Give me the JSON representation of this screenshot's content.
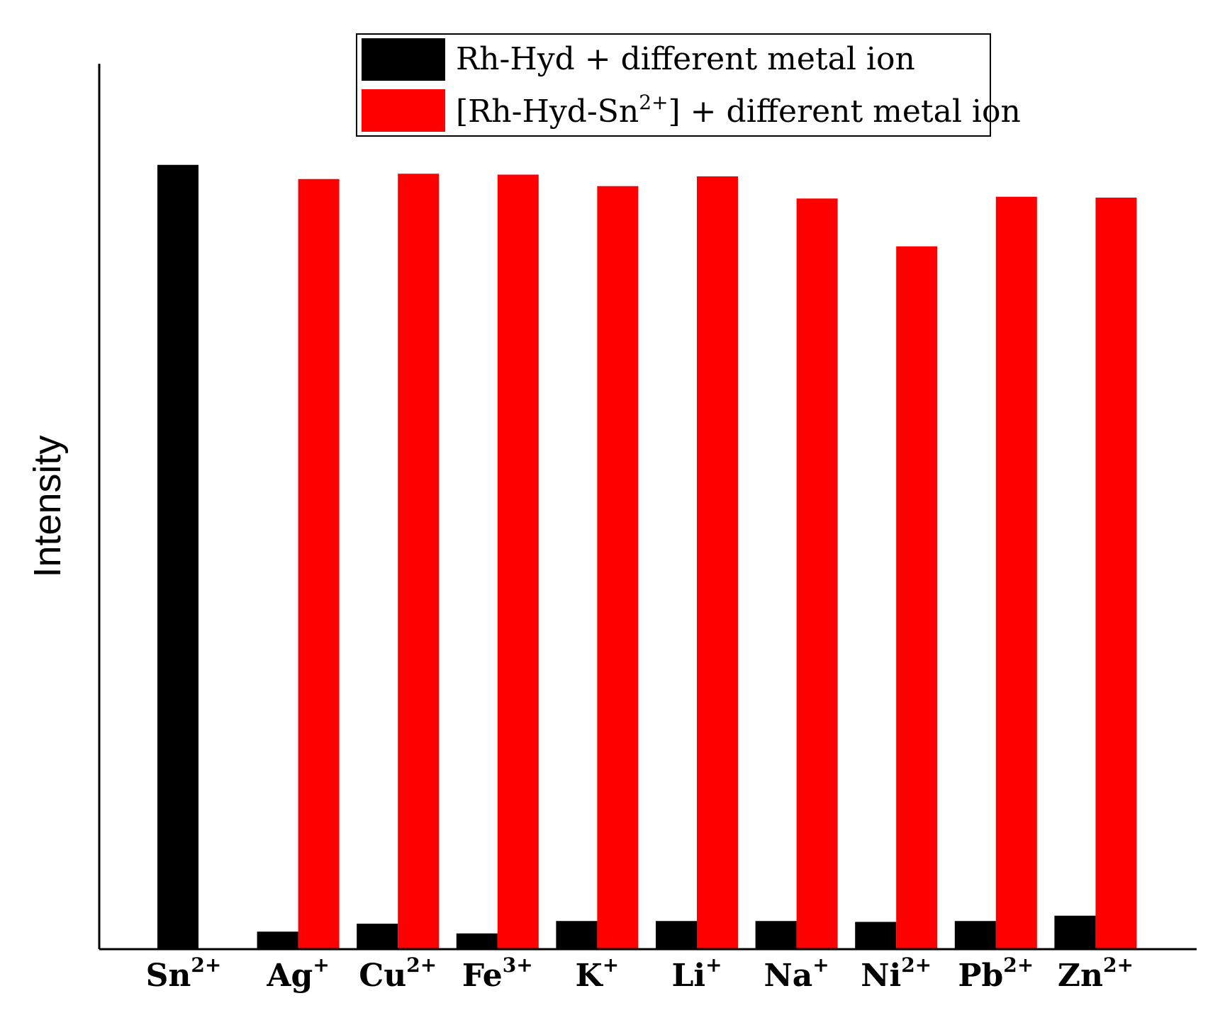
{
  "chart_data": {
    "type": "bar",
    "ylabel": "Intensity",
    "ylim": [
      0,
      100
    ],
    "categories": [
      {
        "base": "Sn",
        "sup": "2+"
      },
      {
        "base": "Ag",
        "sup": "+"
      },
      {
        "base": "Cu",
        "sup": "2+"
      },
      {
        "base": "Fe",
        "sup": "3+"
      },
      {
        "base": "K",
        "sup": "+"
      },
      {
        "base": "Li",
        "sup": "+"
      },
      {
        "base": "Na",
        "sup": "+"
      },
      {
        "base": "Ni",
        "sup": "2+"
      },
      {
        "base": "Pb",
        "sup": "2+"
      },
      {
        "base": "Zn",
        "sup": "2+"
      }
    ],
    "series": [
      {
        "name": "Rh-Hyd + different metal ion",
        "color": "#000000",
        "values": [
          88.5,
          1.9,
          2.8,
          1.7,
          3.1,
          3.1,
          3.1,
          3.0,
          3.1,
          3.7
        ]
      },
      {
        "name": "[Rh-Hyd-Sn2+] + different metal ion",
        "name_parts": {
          "pre": "[Rh-Hyd-Sn",
          "sup": "2+",
          "post": "] + different metal ion"
        },
        "color": "#ff0000",
        "values": [
          null,
          86.9,
          87.5,
          87.4,
          86.1,
          87.2,
          84.7,
          79.3,
          84.9,
          84.8
        ]
      }
    ],
    "legend_position": "top"
  }
}
